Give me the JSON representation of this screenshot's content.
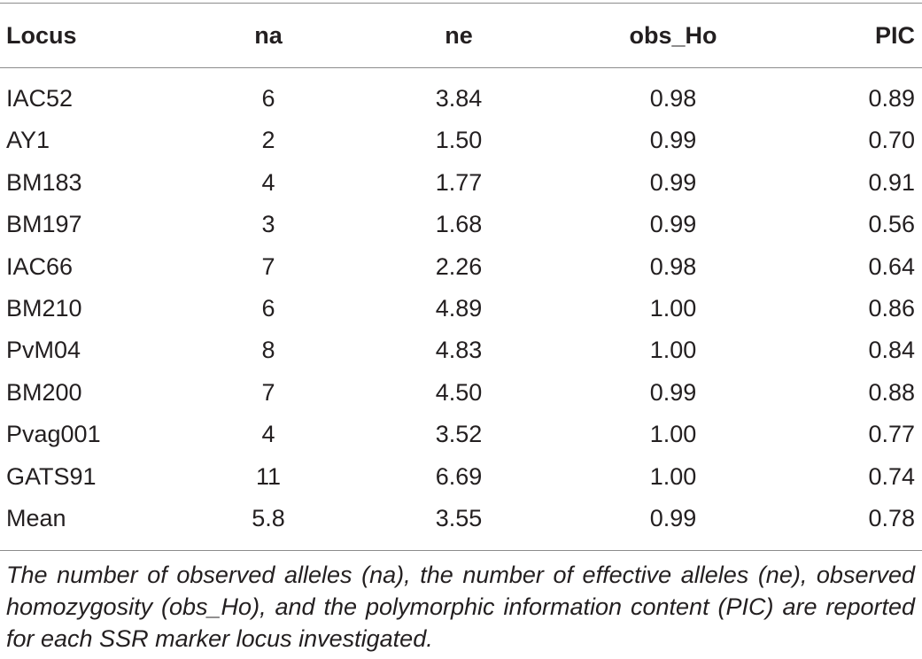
{
  "table": {
    "headers": {
      "locus": "Locus",
      "na": "na",
      "ne": "ne",
      "obs_ho": "obs_Ho",
      "pic": "PIC"
    },
    "rows": [
      {
        "locus": "IAC52",
        "na": "6",
        "ne": "3.84",
        "obs_ho": "0.98",
        "pic": "0.89"
      },
      {
        "locus": "AY1",
        "na": "2",
        "ne": "1.50",
        "obs_ho": "0.99",
        "pic": "0.70"
      },
      {
        "locus": "BM183",
        "na": "4",
        "ne": "1.77",
        "obs_ho": "0.99",
        "pic": "0.91"
      },
      {
        "locus": "BM197",
        "na": "3",
        "ne": "1.68",
        "obs_ho": "0.99",
        "pic": "0.56"
      },
      {
        "locus": "IAC66",
        "na": "7",
        "ne": "2.26",
        "obs_ho": "0.98",
        "pic": "0.64"
      },
      {
        "locus": "BM210",
        "na": "6",
        "ne": "4.89",
        "obs_ho": "1.00",
        "pic": "0.86"
      },
      {
        "locus": "PvM04",
        "na": "8",
        "ne": "4.83",
        "obs_ho": "1.00",
        "pic": "0.84"
      },
      {
        "locus": "BM200",
        "na": "7",
        "ne": "4.50",
        "obs_ho": "0.99",
        "pic": "0.88"
      },
      {
        "locus": "Pvag001",
        "na": "4",
        "ne": "3.52",
        "obs_ho": "1.00",
        "pic": "0.77"
      },
      {
        "locus": "GATS91",
        "na": "11",
        "ne": "6.69",
        "obs_ho": "1.00",
        "pic": "0.74"
      },
      {
        "locus": "Mean",
        "na": "5.8",
        "ne": "3.55",
        "obs_ho": "0.99",
        "pic": "0.78"
      }
    ]
  },
  "footnote": "The number of observed alleles (na), the number of effective alleles (ne), observed homozygosity (obs_Ho), and the polymorphic information content (PIC) are reported for each SSR marker locus investigated."
}
